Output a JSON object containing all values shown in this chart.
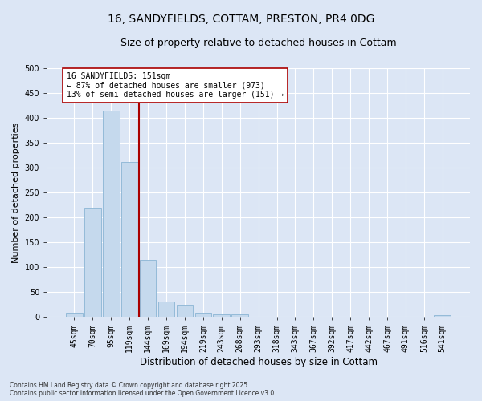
{
  "title_line1": "16, SANDYFIELDS, COTTAM, PRESTON, PR4 0DG",
  "title_line2": "Size of property relative to detached houses in Cottam",
  "xlabel": "Distribution of detached houses by size in Cottam",
  "ylabel": "Number of detached properties",
  "footer": "Contains HM Land Registry data © Crown copyright and database right 2025.\nContains public sector information licensed under the Open Government Licence v3.0.",
  "categories": [
    "45sqm",
    "70sqm",
    "95sqm",
    "119sqm",
    "144sqm",
    "169sqm",
    "194sqm",
    "219sqm",
    "243sqm",
    "268sqm",
    "293sqm",
    "318sqm",
    "343sqm",
    "367sqm",
    "392sqm",
    "417sqm",
    "442sqm",
    "467sqm",
    "491sqm",
    "516sqm",
    "541sqm"
  ],
  "values": [
    8,
    219,
    415,
    312,
    114,
    30,
    24,
    7,
    5,
    4,
    0,
    0,
    0,
    0,
    0,
    0,
    0,
    0,
    0,
    0,
    3
  ],
  "bar_color": "#c5d9ed",
  "bar_edge_color": "#8ab4d4",
  "vline_x_pos": 3.5,
  "vline_color": "#aa0000",
  "annotation_text": "16 SANDYFIELDS: 151sqm\n← 87% of detached houses are smaller (973)\n13% of semi-detached houses are larger (151) →",
  "annotation_box_facecolor": "white",
  "annotation_box_edgecolor": "#aa0000",
  "background_color": "#dce6f5",
  "grid_color": "white",
  "ylim": [
    0,
    500
  ],
  "yticks": [
    0,
    50,
    100,
    150,
    200,
    250,
    300,
    350,
    400,
    450,
    500
  ],
  "title_fontsize": 10,
  "subtitle_fontsize": 9,
  "xlabel_fontsize": 8.5,
  "ylabel_fontsize": 8,
  "tick_fontsize": 7,
  "annotation_fontsize": 7,
  "footer_fontsize": 5.5
}
